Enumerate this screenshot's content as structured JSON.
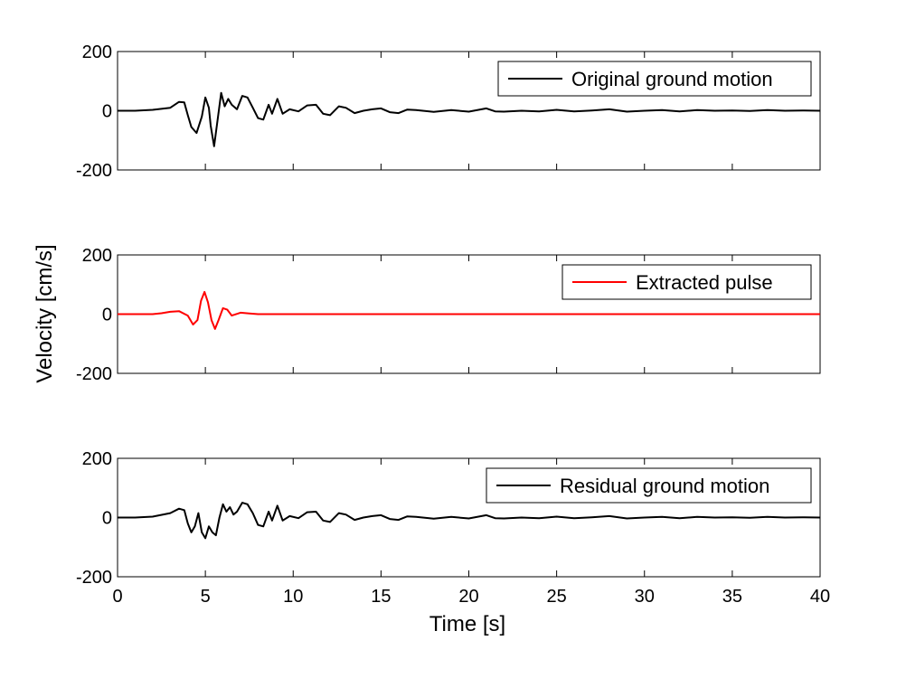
{
  "chart_data": {
    "type": "line",
    "xlabel": "Time [s]",
    "ylabel": "Velocity [cm/s]",
    "xlim": [
      0,
      40
    ],
    "x_ticks": [
      "0",
      "5",
      "10",
      "15",
      "20",
      "25",
      "30",
      "35",
      "40"
    ],
    "grid": false,
    "panels": [
      {
        "name": "original",
        "legend": "Original ground motion",
        "legend_position": "top-right",
        "color": "#000000",
        "ylim": [
          -200,
          200
        ],
        "y_ticks": [
          "200",
          "0",
          "-200"
        ],
        "points": [
          [
            0,
            0
          ],
          [
            1,
            0
          ],
          [
            2,
            3
          ],
          [
            3,
            10
          ],
          [
            3.5,
            30
          ],
          [
            3.8,
            28
          ],
          [
            4,
            -15
          ],
          [
            4.2,
            -55
          ],
          [
            4.5,
            -75
          ],
          [
            4.8,
            -20
          ],
          [
            5,
            45
          ],
          [
            5.2,
            10
          ],
          [
            5.3,
            -50
          ],
          [
            5.5,
            -120
          ],
          [
            5.7,
            -30
          ],
          [
            5.9,
            60
          ],
          [
            6.1,
            15
          ],
          [
            6.3,
            40
          ],
          [
            6.5,
            20
          ],
          [
            6.8,
            5
          ],
          [
            7.1,
            50
          ],
          [
            7.4,
            45
          ],
          [
            7.7,
            10
          ],
          [
            8,
            -25
          ],
          [
            8.3,
            -30
          ],
          [
            8.6,
            20
          ],
          [
            8.8,
            -10
          ],
          [
            9.1,
            40
          ],
          [
            9.4,
            -10
          ],
          [
            9.8,
            5
          ],
          [
            10.3,
            -2
          ],
          [
            10.8,
            18
          ],
          [
            11.3,
            20
          ],
          [
            11.7,
            -10
          ],
          [
            12.1,
            -15
          ],
          [
            12.6,
            15
          ],
          [
            13,
            10
          ],
          [
            13.5,
            -8
          ],
          [
            14,
            0
          ],
          [
            14.5,
            5
          ],
          [
            15,
            8
          ],
          [
            15.5,
            -5
          ],
          [
            16,
            -8
          ],
          [
            16.5,
            4
          ],
          [
            17,
            2
          ],
          [
            18,
            -4
          ],
          [
            19,
            2
          ],
          [
            20,
            -3
          ],
          [
            21,
            8
          ],
          [
            21.5,
            -2
          ],
          [
            22,
            -3
          ],
          [
            23,
            0
          ],
          [
            24,
            -2
          ],
          [
            25,
            3
          ],
          [
            26,
            -2
          ],
          [
            27,
            1
          ],
          [
            28,
            5
          ],
          [
            29,
            -3
          ],
          [
            30,
            0
          ],
          [
            31,
            2
          ],
          [
            32,
            -2
          ],
          [
            33,
            2
          ],
          [
            34,
            0
          ],
          [
            35,
            1
          ],
          [
            36,
            -1
          ],
          [
            37,
            2
          ],
          [
            38,
            0
          ],
          [
            39,
            1
          ],
          [
            40,
            0
          ]
        ]
      },
      {
        "name": "pulse",
        "legend": "Extracted pulse",
        "legend_position": "top-right",
        "color": "#ff0000",
        "ylim": [
          -200,
          200
        ],
        "y_ticks": [
          "200",
          "0",
          "-200"
        ],
        "points": [
          [
            0,
            0
          ],
          [
            2,
            0
          ],
          [
            2.5,
            3
          ],
          [
            3,
            8
          ],
          [
            3.5,
            10
          ],
          [
            4,
            -5
          ],
          [
            4.3,
            -35
          ],
          [
            4.55,
            -20
          ],
          [
            4.75,
            45
          ],
          [
            4.95,
            75
          ],
          [
            5.15,
            40
          ],
          [
            5.35,
            -20
          ],
          [
            5.55,
            -50
          ],
          [
            5.75,
            -20
          ],
          [
            6,
            20
          ],
          [
            6.25,
            15
          ],
          [
            6.5,
            -5
          ],
          [
            7,
            5
          ],
          [
            7.5,
            2
          ],
          [
            8,
            0
          ],
          [
            40,
            0
          ]
        ]
      },
      {
        "name": "residual",
        "legend": "Residual ground motion",
        "legend_position": "top-right",
        "color": "#000000",
        "ylim": [
          -200,
          200
        ],
        "y_ticks": [
          "200",
          "0",
          "-200"
        ],
        "points": [
          [
            0,
            0
          ],
          [
            1,
            0
          ],
          [
            2,
            3
          ],
          [
            3,
            15
          ],
          [
            3.5,
            30
          ],
          [
            3.8,
            25
          ],
          [
            4,
            -20
          ],
          [
            4.2,
            -50
          ],
          [
            4.4,
            -30
          ],
          [
            4.6,
            15
          ],
          [
            4.8,
            -50
          ],
          [
            5,
            -70
          ],
          [
            5.2,
            -30
          ],
          [
            5.4,
            -50
          ],
          [
            5.6,
            -60
          ],
          [
            5.8,
            0
          ],
          [
            6,
            45
          ],
          [
            6.2,
            20
          ],
          [
            6.4,
            35
          ],
          [
            6.6,
            10
          ],
          [
            6.8,
            20
          ],
          [
            7.1,
            50
          ],
          [
            7.4,
            45
          ],
          [
            7.7,
            15
          ],
          [
            8,
            -25
          ],
          [
            8.3,
            -30
          ],
          [
            8.6,
            20
          ],
          [
            8.8,
            -10
          ],
          [
            9.1,
            40
          ],
          [
            9.4,
            -10
          ],
          [
            9.8,
            5
          ],
          [
            10.3,
            -2
          ],
          [
            10.8,
            18
          ],
          [
            11.3,
            20
          ],
          [
            11.7,
            -10
          ],
          [
            12.1,
            -15
          ],
          [
            12.6,
            15
          ],
          [
            13,
            10
          ],
          [
            13.5,
            -8
          ],
          [
            14,
            0
          ],
          [
            14.5,
            5
          ],
          [
            15,
            8
          ],
          [
            15.5,
            -5
          ],
          [
            16,
            -8
          ],
          [
            16.5,
            4
          ],
          [
            17,
            2
          ],
          [
            18,
            -4
          ],
          [
            19,
            2
          ],
          [
            20,
            -3
          ],
          [
            21,
            8
          ],
          [
            21.5,
            -2
          ],
          [
            22,
            -3
          ],
          [
            23,
            0
          ],
          [
            24,
            -2
          ],
          [
            25,
            3
          ],
          [
            26,
            -2
          ],
          [
            27,
            1
          ],
          [
            28,
            5
          ],
          [
            29,
            -3
          ],
          [
            30,
            0
          ],
          [
            31,
            2
          ],
          [
            32,
            -2
          ],
          [
            33,
            2
          ],
          [
            34,
            0
          ],
          [
            35,
            1
          ],
          [
            36,
            -1
          ],
          [
            37,
            2
          ],
          [
            38,
            0
          ],
          [
            39,
            1
          ],
          [
            40,
            0
          ]
        ]
      }
    ]
  }
}
